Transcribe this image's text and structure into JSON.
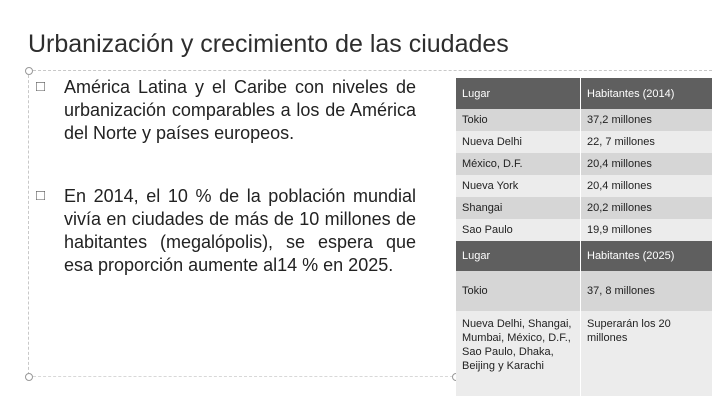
{
  "slide": {
    "title": "Urbanización y crecimiento de las ciudades",
    "bullets": [
      {
        "text": "América Latina y el Caribe con niveles de urbanización comparables a los de América del Norte y países europeos."
      },
      {
        "text": "En 2014, el 10 % de la población mundial vivía en ciudades de más de 10 millones de habitantes (megalópolis), se espera que esa proporción aumente al14 % en 2025."
      }
    ],
    "bullet_glyph": "",
    "table": {
      "header1": {
        "c1": "Lugar",
        "c2": "Habitantes (2014)"
      },
      "rows1": [
        {
          "c1": "Tokio",
          "c2": "37,2 millones"
        },
        {
          "c1": "Nueva Delhi",
          "c2": "22, 7 millones"
        },
        {
          "c1": "México, D.F.",
          "c2": "20,4 millones"
        },
        {
          "c1": "Nueva York",
          "c2": "20,4 millones"
        },
        {
          "c1": "Shangai",
          "c2": "20,2 millones"
        },
        {
          "c1": "Sao Paulo",
          "c2": "19,9 millones"
        }
      ],
      "header2": {
        "c1": "Lugar",
        "c2": "Habitantes (2025)"
      },
      "rows2": [
        {
          "c1": "Tokio",
          "c2": "37, 8 millones"
        },
        {
          "c1": "Nueva Delhi, Shangai, Mumbai, México, D.F., Sao Paulo, Dhaka, Beijing y Karachi",
          "c2": "Superarán los 20 millones"
        }
      ]
    },
    "colors": {
      "header_bg": "#5f5f5f",
      "row_dark": "#d6d6d6",
      "row_light": "#ececec"
    }
  }
}
